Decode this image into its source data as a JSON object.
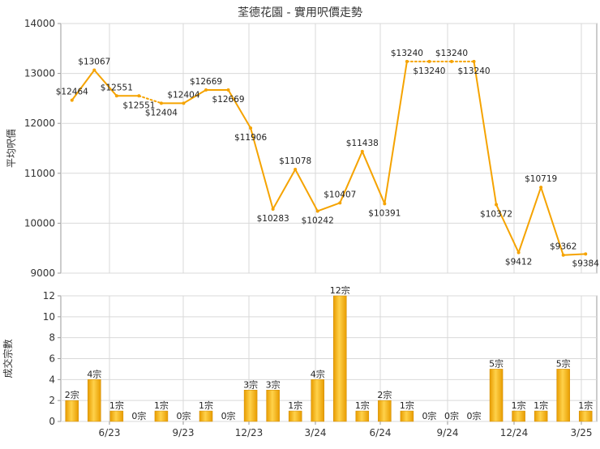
{
  "chart_data": [
    {
      "type": "line",
      "title": "荃德花園 - 實用呎價走勢",
      "ylabel": "平均呎價",
      "ylim": [
        9000,
        14000
      ],
      "yticks": [
        9000,
        10000,
        11000,
        12000,
        13000,
        14000
      ],
      "x_tick_labels": [
        "6/23",
        "9/23",
        "12/23",
        "3/24",
        "6/24",
        "9/24",
        "12/24",
        "3/25"
      ],
      "grid": true,
      "line_color": "#f5a300",
      "values": [
        12464,
        13067,
        12551,
        12551,
        12404,
        12404,
        12669,
        12669,
        11906,
        10283,
        11078,
        10242,
        10407,
        11438,
        10391,
        13240,
        13240,
        13240,
        13240,
        10372,
        9412,
        10719,
        9362,
        9384
      ],
      "labels": [
        "$12464",
        "$13067",
        "$12551",
        "$12551",
        "$12404",
        "$12404",
        "$12669",
        "$12669",
        "$11906",
        "$10283",
        "$11078",
        "$10242",
        "$10407",
        "$11438",
        "$10391",
        "$13240",
        "$13240",
        "$13240",
        "$13240",
        "$10372",
        "$9412",
        "$10719",
        "$9362",
        "$9384"
      ],
      "label_pos": [
        "above",
        "above",
        "above",
        "below",
        "below",
        "above",
        "above",
        "below",
        "below",
        "below",
        "above",
        "below",
        "above",
        "above",
        "below",
        "above",
        "below",
        "above",
        "below",
        "below",
        "below",
        "above",
        "above",
        "below"
      ],
      "dashed_segments": [
        3,
        15,
        16,
        17
      ]
    },
    {
      "type": "bar",
      "ylabel": "成交宗數",
      "ylim": [
        0,
        12
      ],
      "yticks": [
        0,
        2,
        4,
        6,
        8,
        10,
        12
      ],
      "x_tick_labels": [
        "6/23",
        "9/23",
        "12/23",
        "3/24",
        "6/24",
        "9/24",
        "12/24",
        "3/25"
      ],
      "grid": true,
      "bar_color": "#f5b400",
      "values": [
        2,
        4,
        1,
        0,
        1,
        0,
        1,
        0,
        3,
        3,
        1,
        4,
        12,
        1,
        2,
        1,
        0,
        0,
        0,
        5,
        1,
        1,
        5,
        1
      ],
      "labels": [
        "2宗",
        "4宗",
        "1宗",
        "0宗",
        "1宗",
        "0宗",
        "1宗",
        "0宗",
        "3宗",
        "3宗",
        "1宗",
        "4宗",
        "12宗",
        "1宗",
        "2宗",
        "1宗",
        "0宗",
        "0宗",
        "0宗",
        "5宗",
        "1宗",
        "1宗",
        "5宗",
        "1宗"
      ]
    }
  ]
}
